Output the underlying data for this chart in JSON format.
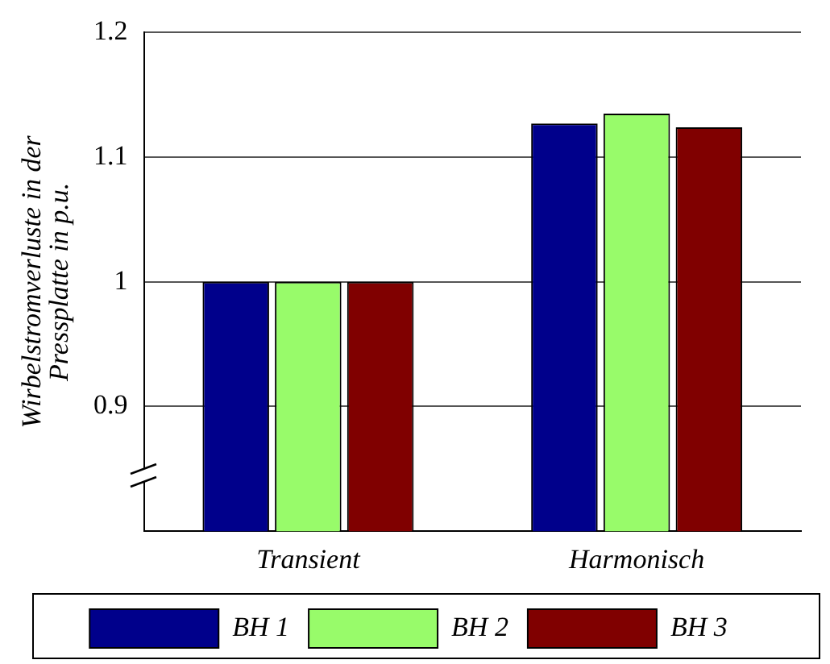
{
  "chart_data": {
    "type": "bar",
    "ylabel": "Wirbelstromverluste in der Pressplatte in p.u.",
    "categories": [
      "Transient",
      "Harmonisch"
    ],
    "series": [
      {
        "name": "BH 1",
        "color": "#00008b",
        "values": [
          1.0,
          1.127
        ]
      },
      {
        "name": "BH 2",
        "color": "#98fb6a",
        "values": [
          1.0,
          1.135
        ]
      },
      {
        "name": "BH 3",
        "color": "#800000",
        "values": [
          1.0,
          1.124
        ]
      }
    ],
    "ylim": [
      0.8,
      1.2
    ],
    "yticks": [
      0.9,
      1,
      1.1,
      1.2
    ],
    "grid": "y",
    "legend": "bottom"
  }
}
